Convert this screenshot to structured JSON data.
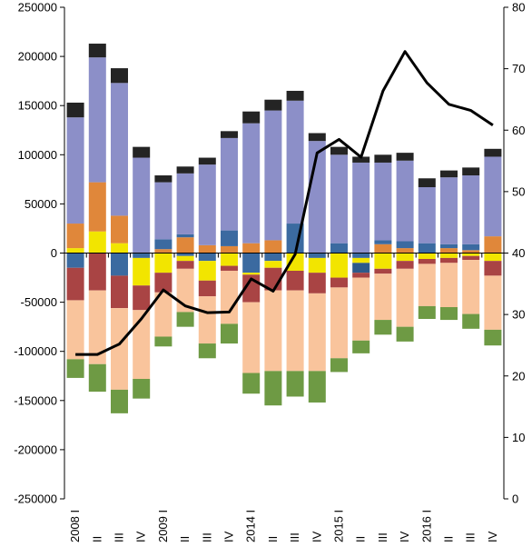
{
  "chart_data": {
    "type": "bar",
    "categories": [
      "2008 I",
      "II",
      "III",
      "IV",
      "2009 I",
      "II",
      "III",
      "IV",
      "2014 I",
      "II",
      "III",
      "IV",
      "2015 I",
      "II",
      "III",
      "IV",
      "2016 I",
      "II",
      "III",
      "IV"
    ],
    "left_axis": {
      "ylim": [
        -250000,
        250000
      ],
      "ticks": [
        250000,
        200000,
        150000,
        100000,
        50000,
        0,
        -50000,
        -100000,
        -150000,
        -200000,
        -250000
      ]
    },
    "right_axis": {
      "ylim": [
        0,
        80
      ],
      "ticks": [
        80,
        70,
        60,
        50,
        40,
        30,
        20,
        10,
        0
      ]
    },
    "stack_series_pos": [
      {
        "color": "#F2E500",
        "values": [
          5000,
          22000,
          10000,
          0,
          0,
          0,
          0,
          0,
          0,
          0,
          0,
          0,
          0,
          0,
          0,
          0,
          0,
          0,
          0,
          0
        ]
      },
      {
        "color": "#E0873A",
        "values": [
          25000,
          50000,
          28000,
          0,
          4000,
          16000,
          8000,
          7000,
          10000,
          13000,
          0,
          0,
          0,
          0,
          9000,
          5000,
          0,
          5000,
          3000,
          17000
        ]
      },
      {
        "color": "#3B6AA0",
        "values": [
          0,
          0,
          0,
          0,
          10000,
          3000,
          0,
          16000,
          0,
          0,
          30000,
          0,
          10000,
          0,
          4000,
          7000,
          10000,
          4000,
          6000,
          0
        ]
      },
      {
        "color": "#8C8FC8",
        "values": [
          108000,
          127000,
          135000,
          97000,
          58000,
          62000,
          82000,
          94000,
          122000,
          132000,
          125000,
          114000,
          90000,
          92000,
          79000,
          82000,
          57000,
          68000,
          70000,
          81000
        ]
      },
      {
        "color": "#242424",
        "values": [
          15000,
          14000,
          15000,
          11000,
          7000,
          7000,
          7000,
          7000,
          12000,
          11000,
          10000,
          8000,
          8000,
          6000,
          8000,
          8000,
          9000,
          7000,
          8000,
          8000
        ]
      }
    ],
    "stack_series_neg": [
      {
        "color": "#3B6AA0",
        "values": [
          -15000,
          0,
          -23000,
          -5000,
          0,
          -3000,
          -8000,
          0,
          -20000,
          -8000,
          0,
          -5000,
          0,
          -5000,
          0,
          0,
          0,
          0,
          0,
          0
        ]
      },
      {
        "color": "#F2E500",
        "values": [
          0,
          0,
          0,
          -28000,
          -20000,
          -5000,
          -20000,
          -13000,
          -2000,
          -7000,
          -18000,
          -15000,
          -25000,
          -5000,
          -16000,
          -8000,
          -6000,
          -5000,
          -3000,
          -8000
        ]
      },
      {
        "color": "#2E5A8A",
        "values": [
          0,
          0,
          0,
          0,
          0,
          0,
          0,
          0,
          0,
          0,
          0,
          0,
          0,
          -10000,
          0,
          0,
          0,
          0,
          0,
          0
        ]
      },
      {
        "color": "#A94444",
        "values": [
          -33000,
          -38000,
          -33000,
          -25000,
          -20000,
          -8000,
          -16000,
          -5000,
          -28000,
          -23000,
          -20000,
          -21000,
          -10000,
          -5000,
          -5000,
          -8000,
          -5000,
          -5000,
          -4000,
          -15000
        ]
      },
      {
        "color": "#F9C49C",
        "values": [
          -60000,
          -75000,
          -83000,
          -70000,
          -45000,
          -44000,
          -48000,
          -54000,
          -72000,
          -82000,
          -82000,
          -79000,
          -72000,
          -64000,
          -47000,
          -59000,
          -43000,
          -45000,
          -55000,
          -55000
        ]
      },
      {
        "color": "#6E9A44",
        "values": [
          -19000,
          -28000,
          -24000,
          -20000,
          -10000,
          -15000,
          -15000,
          -20000,
          -21000,
          -35000,
          -26000,
          -32000,
          -14000,
          -13000,
          -15000,
          -15000,
          -13000,
          -13000,
          -15000,
          -16000
        ]
      }
    ],
    "line_series": {
      "axis": "right",
      "color": "#000000",
      "values": [
        23.5,
        23.5,
        25.2,
        29.3,
        34.0,
        31.4,
        30.3,
        30.4,
        35.8,
        33.8,
        39.8,
        56.3,
        58.5,
        55.6,
        66.4,
        72.8,
        67.7,
        64.2,
        63.2,
        60.8
      ]
    },
    "grid": false,
    "legend": "none",
    "title": "",
    "xlabel": "",
    "ylabel": ""
  }
}
